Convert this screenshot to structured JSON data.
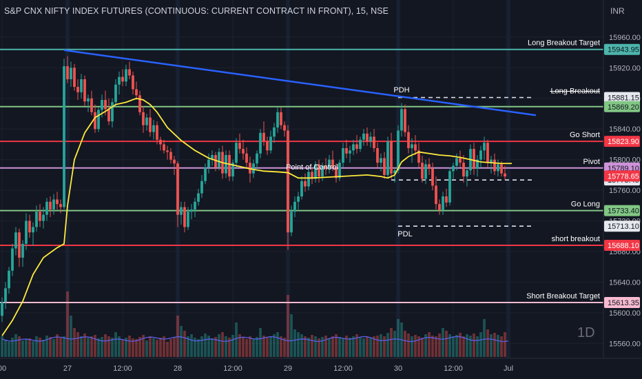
{
  "header": {
    "symbol_title": "S&P CNX NIFTY INDEX FUTURES (CONTINUOUS: CURRENT CONTRACT IN FRONT), 15, NSE",
    "currency": "INR",
    "interval_badge": "1D"
  },
  "colors": {
    "background": "#131722",
    "grid": "#1e222d",
    "candle_up": "#26a69a",
    "candle_down": "#ef5350",
    "trendline": "#2962ff",
    "vwap": "#ffeb3b",
    "volume_ma": "#5b5fe6",
    "teal": "#4db6ac",
    "green": "#81c784",
    "red": "#f23645",
    "purple": "#ce93d8",
    "pink": "#f8bbd0"
  },
  "chart_data": {
    "type": "candlestick",
    "title": "S&P CNX NIFTY INDEX FUTURES (CONTINUOUS: CURRENT CONTRACT IN FRONT), 15, NSE",
    "ylim": [
      15545,
      15968
    ],
    "y_ticks": [
      15960,
      15920,
      15880,
      15840,
      15800,
      15760,
      15720,
      15680,
      15640,
      15600,
      15560
    ],
    "y_tick_labels": [
      "15960.00",
      "15920.00",
      "15880.00",
      "15840.00",
      "15800.00",
      "15760.00",
      "15720.00",
      "15680.00",
      "15640.00",
      "15600.00",
      "15560.00"
    ],
    "x_ticks": [
      {
        "label": "00",
        "bar": 0
      },
      {
        "label": "27",
        "bar": 19
      },
      {
        "label": "12:00",
        "bar": 35
      },
      {
        "label": "28",
        "bar": 51
      },
      {
        "label": "12:00",
        "bar": 67
      },
      {
        "label": "29",
        "bar": 83
      },
      {
        "label": "12:00",
        "bar": 99
      },
      {
        "label": "30",
        "bar": 115
      },
      {
        "label": "12:00",
        "bar": 131
      },
      {
        "label": "Jul",
        "bar": 147
      }
    ],
    "levels": [
      {
        "label": "Long Breakout Target",
        "value": 15943.95,
        "tag": "15943.95",
        "color": "teal",
        "style": "solid"
      },
      {
        "label": "Long Breakout",
        "value": 15881.15,
        "tag": "15881.15",
        "color": "white",
        "style": "dashed",
        "strike": true
      },
      {
        "label": "",
        "value": 15869.2,
        "tag": "15869.20",
        "color": "green",
        "style": "solid"
      },
      {
        "label": "Go Short",
        "value": 15823.9,
        "tag": "15823.90",
        "color": "red",
        "style": "solid"
      },
      {
        "label": "Pivot",
        "value": 15789.1,
        "tag": "15789.10",
        "color": "purple",
        "style": "solid"
      },
      {
        "label": "Go Long",
        "value": 15733.4,
        "tag": "15733.40",
        "color": "green",
        "style": "solid"
      },
      {
        "label": "",
        "value": 15713.1,
        "tag": "15713.10",
        "color": "white",
        "style": "dashed"
      },
      {
        "label": "short breakout",
        "value": 15688.1,
        "tag": "15688.10",
        "color": "red",
        "style": "solid"
      },
      {
        "label": "Short  Breakout Target",
        "value": 15613.35,
        "tag": "15613.35",
        "color": "pink",
        "style": "solid"
      }
    ],
    "dashed_segments": [
      {
        "value": 15881.15,
        "from_bar": 115,
        "to_bar": 154
      },
      {
        "value": 15773.45,
        "from_bar": 113,
        "to_bar": 154
      },
      {
        "value": 15713.1,
        "from_bar": 115,
        "to_bar": 154
      }
    ],
    "last_price": {
      "value": 15778.65,
      "tag": "15778.65"
    },
    "last_dashed_tag": {
      "value": 15773.45,
      "tag": "15773.45"
    },
    "annotations": [
      {
        "text": "PDH",
        "bar": 116,
        "value": 15888
      },
      {
        "text": "Point of Control",
        "bar": 90,
        "value": 15787
      },
      {
        "text": "PDL",
        "bar": 117,
        "value": 15700
      }
    ],
    "trendline": {
      "from": {
        "bar": 18,
        "value": 15943
      },
      "to": {
        "bar": 155,
        "value": 15858
      }
    },
    "ohlc": [
      [
        15596,
        15620,
        15588,
        15614
      ],
      [
        15614,
        15640,
        15605,
        15632
      ],
      [
        15632,
        15660,
        15625,
        15655
      ],
      [
        15655,
        15690,
        15648,
        15684
      ],
      [
        15684,
        15712,
        15675,
        15705
      ],
      [
        15705,
        15710,
        15660,
        15672
      ],
      [
        15672,
        15695,
        15660,
        15690
      ],
      [
        15690,
        15730,
        15682,
        15720
      ],
      [
        15720,
        15728,
        15698,
        15705
      ],
      [
        15705,
        15718,
        15688,
        15712
      ],
      [
        15712,
        15740,
        15706,
        15732
      ],
      [
        15732,
        15742,
        15712,
        15720
      ],
      [
        15720,
        15738,
        15710,
        15728
      ],
      [
        15728,
        15750,
        15720,
        15745
      ],
      [
        15745,
        15752,
        15725,
        15735
      ],
      [
        15735,
        15755,
        15728,
        15748
      ],
      [
        15748,
        15758,
        15735,
        15742
      ],
      [
        15742,
        15748,
        15730,
        15738
      ],
      [
        15738,
        15932,
        15735,
        15922
      ],
      [
        15922,
        15935,
        15900,
        15905
      ],
      [
        15905,
        15928,
        15895,
        15920
      ],
      [
        15920,
        15925,
        15890,
        15895
      ],
      [
        15895,
        15905,
        15878,
        15888
      ],
      [
        15888,
        15912,
        15880,
        15905
      ],
      [
        15905,
        15910,
        15870,
        15876
      ],
      [
        15876,
        15885,
        15862,
        15880
      ],
      [
        15880,
        15890,
        15858,
        15862
      ],
      [
        15862,
        15872,
        15835,
        15840
      ],
      [
        15840,
        15868,
        15836,
        15865
      ],
      [
        15865,
        15885,
        15855,
        15878
      ],
      [
        15878,
        15890,
        15858,
        15866
      ],
      [
        15866,
        15880,
        15845,
        15850
      ],
      [
        15850,
        15880,
        15842,
        15875
      ],
      [
        15875,
        15905,
        15870,
        15898
      ],
      [
        15898,
        15915,
        15885,
        15908
      ],
      [
        15908,
        15918,
        15896,
        15902
      ],
      [
        15902,
        15924,
        15896,
        15918
      ],
      [
        15918,
        15928,
        15905,
        15910
      ],
      [
        15910,
        15915,
        15885,
        15892
      ],
      [
        15892,
        15902,
        15878,
        15884
      ],
      [
        15884,
        15890,
        15858,
        15862
      ],
      [
        15862,
        15870,
        15835,
        15845
      ],
      [
        15845,
        15860,
        15838,
        15855
      ],
      [
        15855,
        15866,
        15830,
        15836
      ],
      [
        15836,
        15852,
        15826,
        15845
      ],
      [
        15845,
        15850,
        15820,
        15826
      ],
      [
        15826,
        15830,
        15812,
        15820
      ],
      [
        15820,
        15826,
        15808,
        15812
      ],
      [
        15812,
        15818,
        15800,
        15810
      ],
      [
        15810,
        15815,
        15795,
        15800
      ],
      [
        15800,
        15805,
        15780,
        15795
      ],
      [
        15795,
        15798,
        15712,
        15728
      ],
      [
        15728,
        15745,
        15715,
        15738
      ],
      [
        15738,
        15745,
        15705,
        15712
      ],
      [
        15712,
        15738,
        15708,
        15732
      ],
      [
        15732,
        15742,
        15722,
        15735
      ],
      [
        15735,
        15750,
        15725,
        15745
      ],
      [
        15745,
        15762,
        15740,
        15756
      ],
      [
        15756,
        15780,
        15750,
        15772
      ],
      [
        15772,
        15795,
        15768,
        15790
      ],
      [
        15790,
        15808,
        15782,
        15800
      ],
      [
        15800,
        15812,
        15792,
        15806
      ],
      [
        15806,
        15810,
        15785,
        15790
      ],
      [
        15790,
        15815,
        15786,
        15810
      ],
      [
        15810,
        15818,
        15775,
        15782
      ],
      [
        15782,
        15812,
        15776,
        15806
      ],
      [
        15806,
        15812,
        15772,
        15778
      ],
      [
        15778,
        15800,
        15772,
        15796
      ],
      [
        15796,
        15828,
        15790,
        15822
      ],
      [
        15822,
        15834,
        15808,
        15814
      ],
      [
        15814,
        15826,
        15800,
        15808
      ],
      [
        15808,
        15816,
        15788,
        15796
      ],
      [
        15796,
        15804,
        15770,
        15782
      ],
      [
        15782,
        15800,
        15776,
        15795
      ],
      [
        15795,
        15812,
        15788,
        15808
      ],
      [
        15808,
        15840,
        15802,
        15835
      ],
      [
        15835,
        15850,
        15818,
        15824
      ],
      [
        15824,
        15830,
        15806,
        15812
      ],
      [
        15812,
        15838,
        15808,
        15830
      ],
      [
        15830,
        15848,
        15822,
        15842
      ],
      [
        15842,
        15868,
        15835,
        15862
      ],
      [
        15862,
        15868,
        15840,
        15845
      ],
      [
        15845,
        15850,
        15830,
        15838
      ],
      [
        15838,
        15845,
        15682,
        15705
      ],
      [
        15705,
        15740,
        15700,
        15732
      ],
      [
        15732,
        15752,
        15725,
        15745
      ],
      [
        15745,
        15758,
        15735,
        15752
      ],
      [
        15752,
        15778,
        15748,
        15772
      ],
      [
        15772,
        15782,
        15758,
        15765
      ],
      [
        15765,
        15788,
        15760,
        15784
      ],
      [
        15784,
        15790,
        15768,
        15775
      ],
      [
        15775,
        15798,
        15770,
        15794
      ],
      [
        15794,
        15800,
        15770,
        15778
      ],
      [
        15778,
        15796,
        15772,
        15792
      ],
      [
        15792,
        15802,
        15780,
        15788
      ],
      [
        15788,
        15806,
        15782,
        15800
      ],
      [
        15800,
        15812,
        15785,
        15790
      ],
      [
        15790,
        15795,
        15770,
        15776
      ],
      [
        15776,
        15800,
        15772,
        15796
      ],
      [
        15796,
        15822,
        15790,
        15815
      ],
      [
        15815,
        15826,
        15802,
        15808
      ],
      [
        15808,
        15818,
        15796,
        15812
      ],
      [
        15812,
        15826,
        15806,
        15820
      ],
      [
        15820,
        15832,
        15808,
        15814
      ],
      [
        15814,
        15830,
        15810,
        15826
      ],
      [
        15826,
        15840,
        15818,
        15834
      ],
      [
        15834,
        15842,
        15818,
        15824
      ],
      [
        15824,
        15836,
        15816,
        15830
      ],
      [
        15830,
        15840,
        15810,
        15815
      ],
      [
        15815,
        15822,
        15790,
        15796
      ],
      [
        15796,
        15808,
        15785,
        15802
      ],
      [
        15802,
        15810,
        15775,
        15780
      ],
      [
        15780,
        15830,
        15776,
        15824
      ],
      [
        15824,
        15835,
        15775,
        15782
      ],
      [
        15782,
        15790,
        15770,
        15786
      ],
      [
        15786,
        15845,
        15782,
        15838
      ],
      [
        15838,
        15874,
        15830,
        15866
      ],
      [
        15866,
        15872,
        15830,
        15836
      ],
      [
        15836,
        15845,
        15808,
        15815
      ],
      [
        15815,
        15828,
        15796,
        15820
      ],
      [
        15820,
        15832,
        15806,
        15812
      ],
      [
        15812,
        15822,
        15790,
        15796
      ],
      [
        15796,
        15805,
        15770,
        15775
      ],
      [
        15775,
        15800,
        15768,
        15794
      ],
      [
        15794,
        15802,
        15780,
        15788
      ],
      [
        15788,
        15796,
        15760,
        15766
      ],
      [
        15766,
        15778,
        15735,
        15742
      ],
      [
        15742,
        15748,
        15728,
        15734
      ],
      [
        15734,
        15758,
        15728,
        15752
      ],
      [
        15752,
        15762,
        15738,
        15744
      ],
      [
        15744,
        15790,
        15740,
        15785
      ],
      [
        15785,
        15796,
        15775,
        15792
      ],
      [
        15792,
        15808,
        15786,
        15802
      ],
      [
        15802,
        15812,
        15790,
        15796
      ],
      [
        15796,
        15806,
        15770,
        15778
      ],
      [
        15778,
        15790,
        15765,
        15786
      ],
      [
        15786,
        15820,
        15780,
        15814
      ],
      [
        15814,
        15822,
        15780,
        15788
      ],
      [
        15788,
        15806,
        15778,
        15800
      ],
      [
        15800,
        15818,
        15790,
        15812
      ],
      [
        15812,
        15830,
        15800,
        15822
      ],
      [
        15822,
        15826,
        15790,
        15796
      ],
      [
        15796,
        15805,
        15782,
        15800
      ],
      [
        15800,
        15808,
        15780,
        15785
      ],
      [
        15785,
        15800,
        15778,
        15794
      ],
      [
        15794,
        15798,
        15778,
        15782
      ],
      [
        15782,
        15792,
        15774,
        15778
      ]
    ],
    "vwap": [
      [
        0,
        15570
      ],
      [
        3,
        15590
      ],
      [
        6,
        15615
      ],
      [
        9,
        15650
      ],
      [
        12,
        15672
      ],
      [
        16,
        15685
      ],
      [
        18,
        15690
      ],
      [
        19,
        15740
      ],
      [
        21,
        15800
      ],
      [
        24,
        15835
      ],
      [
        27,
        15855
      ],
      [
        30,
        15863
      ],
      [
        33,
        15872
      ],
      [
        36,
        15875
      ],
      [
        39,
        15880
      ],
      [
        41,
        15878
      ],
      [
        43,
        15872
      ],
      [
        45,
        15862
      ],
      [
        48,
        15842
      ],
      [
        52,
        15825
      ],
      [
        56,
        15812
      ],
      [
        60,
        15802
      ],
      [
        64,
        15796
      ],
      [
        68,
        15792
      ],
      [
        72,
        15788
      ],
      [
        76,
        15785
      ],
      [
        80,
        15784
      ],
      [
        83,
        15783
      ],
      [
        86,
        15776
      ],
      [
        90,
        15776
      ],
      [
        94,
        15777
      ],
      [
        98,
        15778
      ],
      [
        102,
        15779
      ],
      [
        106,
        15780
      ],
      [
        110,
        15778
      ],
      [
        112,
        15776
      ],
      [
        114,
        15780
      ],
      [
        116,
        15797
      ],
      [
        118,
        15804
      ],
      [
        121,
        15810
      ],
      [
        124,
        15808
      ],
      [
        127,
        15806
      ],
      [
        130,
        15805
      ],
      [
        133,
        15803
      ],
      [
        136,
        15800
      ],
      [
        139,
        15797
      ],
      [
        142,
        15796
      ],
      [
        145,
        15795
      ],
      [
        148,
        15795
      ]
    ],
    "volume_ma_pct": 0.3,
    "volume_pct": [
      0.3,
      0.25,
      0.22,
      0.28,
      0.33,
      0.3,
      0.24,
      0.26,
      0.27,
      0.23,
      0.3,
      0.28,
      0.25,
      0.31,
      0.29,
      0.26,
      0.33,
      0.28,
      0.3,
      0.95,
      0.6,
      0.42,
      0.36,
      0.3,
      0.34,
      0.28,
      0.3,
      0.32,
      0.27,
      0.29,
      0.33,
      0.3,
      0.28,
      0.36,
      0.3,
      0.25,
      0.28,
      0.31,
      0.27,
      0.26,
      0.29,
      0.32,
      0.24,
      0.3,
      0.27,
      0.25,
      0.28,
      0.3,
      0.22,
      0.26,
      0.29,
      0.6,
      0.45,
      0.38,
      0.3,
      0.33,
      0.28,
      0.26,
      0.3,
      0.34,
      0.31,
      0.27,
      0.29,
      0.33,
      0.36,
      0.3,
      0.28,
      0.32,
      0.5,
      0.33,
      0.28,
      0.26,
      0.3,
      0.27,
      0.29,
      0.42,
      0.31,
      0.28,
      0.3,
      0.33,
      0.36,
      0.3,
      0.28,
      0.9,
      0.62,
      0.4,
      0.36,
      0.33,
      0.3,
      0.28,
      0.32,
      0.3,
      0.27,
      0.29,
      0.31,
      0.27,
      0.3,
      0.33,
      0.29,
      0.27,
      0.31,
      0.28,
      0.3,
      0.33,
      0.29,
      0.27,
      0.3,
      0.28,
      0.3,
      0.31,
      0.33,
      0.3,
      0.35,
      0.42,
      0.38,
      0.55,
      0.5,
      0.38,
      0.34,
      0.3,
      0.32,
      0.3,
      0.28,
      0.33,
      0.36,
      0.31,
      0.3,
      0.34,
      0.42,
      0.38,
      0.33,
      0.3,
      0.32,
      0.35,
      0.3,
      0.33,
      0.31,
      0.34,
      0.3,
      0.36,
      0.55,
      0.4,
      0.33,
      0.35,
      0.32,
      0.3,
      0.36,
      0.3
    ]
  }
}
